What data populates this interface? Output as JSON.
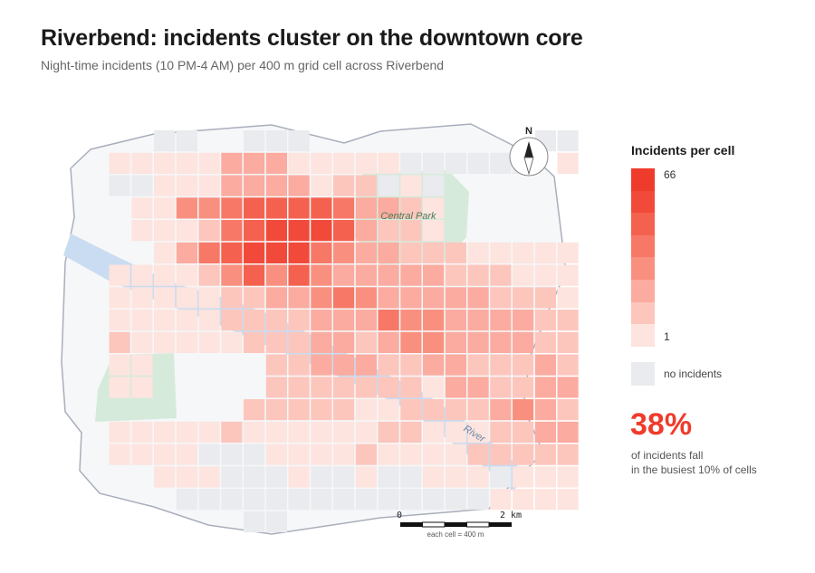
{
  "header": {
    "title": "Riverbend: incidents cluster on the downtown core",
    "subtitle": "Night-time incidents (10 PM-4 AM) per 400 m grid cell across Riverbend"
  },
  "map": {
    "park_north_label": "Central Park",
    "river_label": "River",
    "compass_label": "N",
    "scale": {
      "start": "0",
      "end": "2 km",
      "note": "each cell = 400 m"
    },
    "colors": {
      "none": "#eaebee",
      "ramp": [
        "#fde4df",
        "#fcc6bd",
        "#fbab9f",
        "#f9907f",
        "#f77867",
        "#f5614f",
        "#f24a3a",
        "#ef3b2c"
      ],
      "park": "#d6eadb",
      "river": "#c9dcf1",
      "outline": "#a9aebb"
    },
    "rows": [
      "....00..000..........000.00...",
      "..1111133311111000000.1111111.",
      "..001113333122010......001111",
      "...11445666653321.......11111",
      "...11125677763221.......11121",
      "....1356777543322211111122211",
      "..11112464643333322211112212211",
      "..1111122334543333322211111111",
      "..111112222333544333322211111",
      "..2111112223323443333222111111",
      "..11.....2233322332223221121",
      "..11.....22222221332233311121",
      "........2222211222234322221",
      "..11111211111122111223331111",
      "..1111000111121111222222111",
      "....11100010010011101111111",
      ".....00000000000000111111",
      "........00....................."
    ]
  },
  "legend": {
    "title": "Incidents per cell",
    "max_label": "66",
    "min_label": "1",
    "no_incidents_label": "no incidents"
  },
  "stat": {
    "value": "38%",
    "line1": "of incidents fall",
    "line2": "in the busiest 10% of cells"
  }
}
